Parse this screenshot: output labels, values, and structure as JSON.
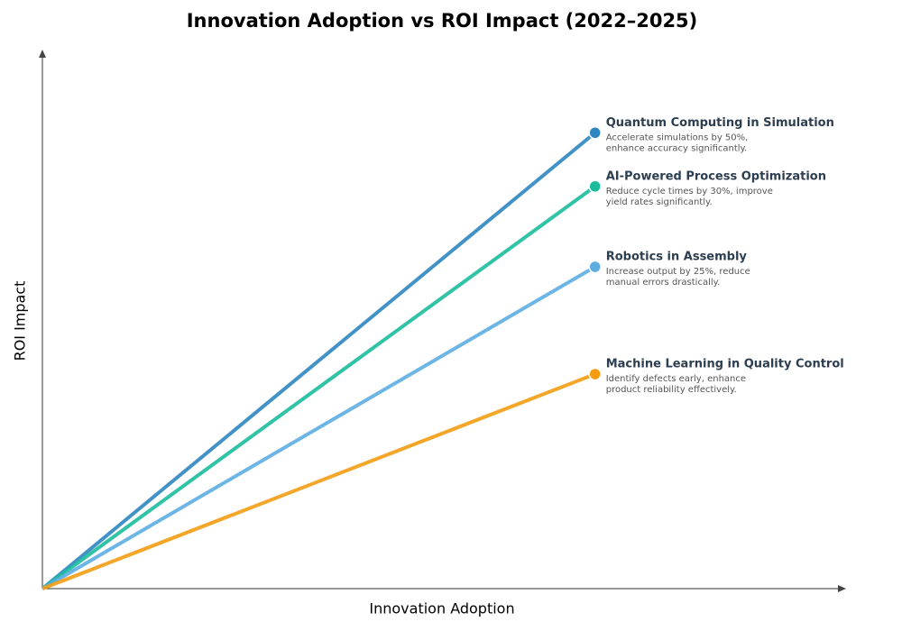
{
  "chart_data": {
    "type": "line",
    "title": "Innovation Adoption vs ROI Impact (2022–2025)",
    "x_label": "Innovation Adoption",
    "y_label": "ROI Impact",
    "xlim": [
      0,
      10
    ],
    "ylim": [
      0,
      10
    ],
    "series": [
      {
        "name": "Quantum Computing in Simulation",
        "color": "#2e86c1",
        "x": [
          0,
          6.9
        ],
        "values": [
          0,
          8.5
        ],
        "description": [
          "Accelerate simulations by 50%,",
          "enhance accuracy significantly."
        ]
      },
      {
        "name": "AI-Powered Process Optimization",
        "color": "#1abc9c",
        "x": [
          0,
          6.9
        ],
        "values": [
          0,
          7.5
        ],
        "description": [
          "Reduce cycle times by 30%, improve",
          "yield rates significantly."
        ]
      },
      {
        "name": "Robotics in Assembly",
        "color": "#5dade2",
        "x": [
          0,
          6.9
        ],
        "values": [
          0,
          6.0
        ],
        "description": [
          "Increase output by 25%, reduce",
          "manual errors drastically."
        ]
      },
      {
        "name": "Machine Learning in Quality Control",
        "color": "#f39c12",
        "x": [
          0,
          6.9
        ],
        "values": [
          0,
          4.0
        ],
        "description": [
          "Identify defects early, enhance",
          "product reliability effectively."
        ]
      }
    ]
  }
}
